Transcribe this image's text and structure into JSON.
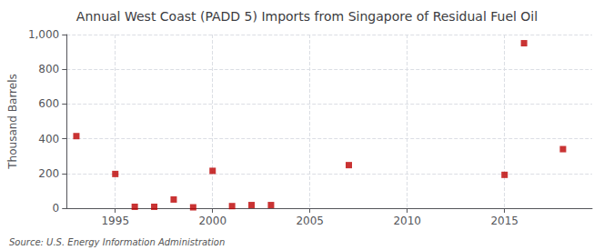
{
  "chart_data": {
    "type": "scatter",
    "title": "Annual West Coast (PADD 5) Imports from Singapore of Residual Fuel Oil",
    "ylabel": "Thousand Barrels",
    "annotations": [
      "Source: U.S. Energy Information Administration"
    ],
    "x": [
      1993,
      1995,
      1996,
      1997,
      1998,
      1999,
      2000,
      2001,
      2002,
      2003,
      2007,
      2015,
      2016,
      2018
    ],
    "values": [
      415,
      197,
      8,
      8,
      50,
      5,
      215,
      12,
      18,
      18,
      248,
      192,
      950,
      340
    ],
    "color": "#bb0000",
    "marker": "square",
    "xlim": [
      1992.5,
      2019.5
    ],
    "xticks": [
      1995,
      2000,
      2005,
      2010,
      2015
    ],
    "ylim": [
      0,
      1000
    ],
    "yticks": [
      0,
      200,
      400,
      600,
      800,
      {
        "value": 1000,
        "label": "1,000"
      }
    ],
    "grid": true
  }
}
